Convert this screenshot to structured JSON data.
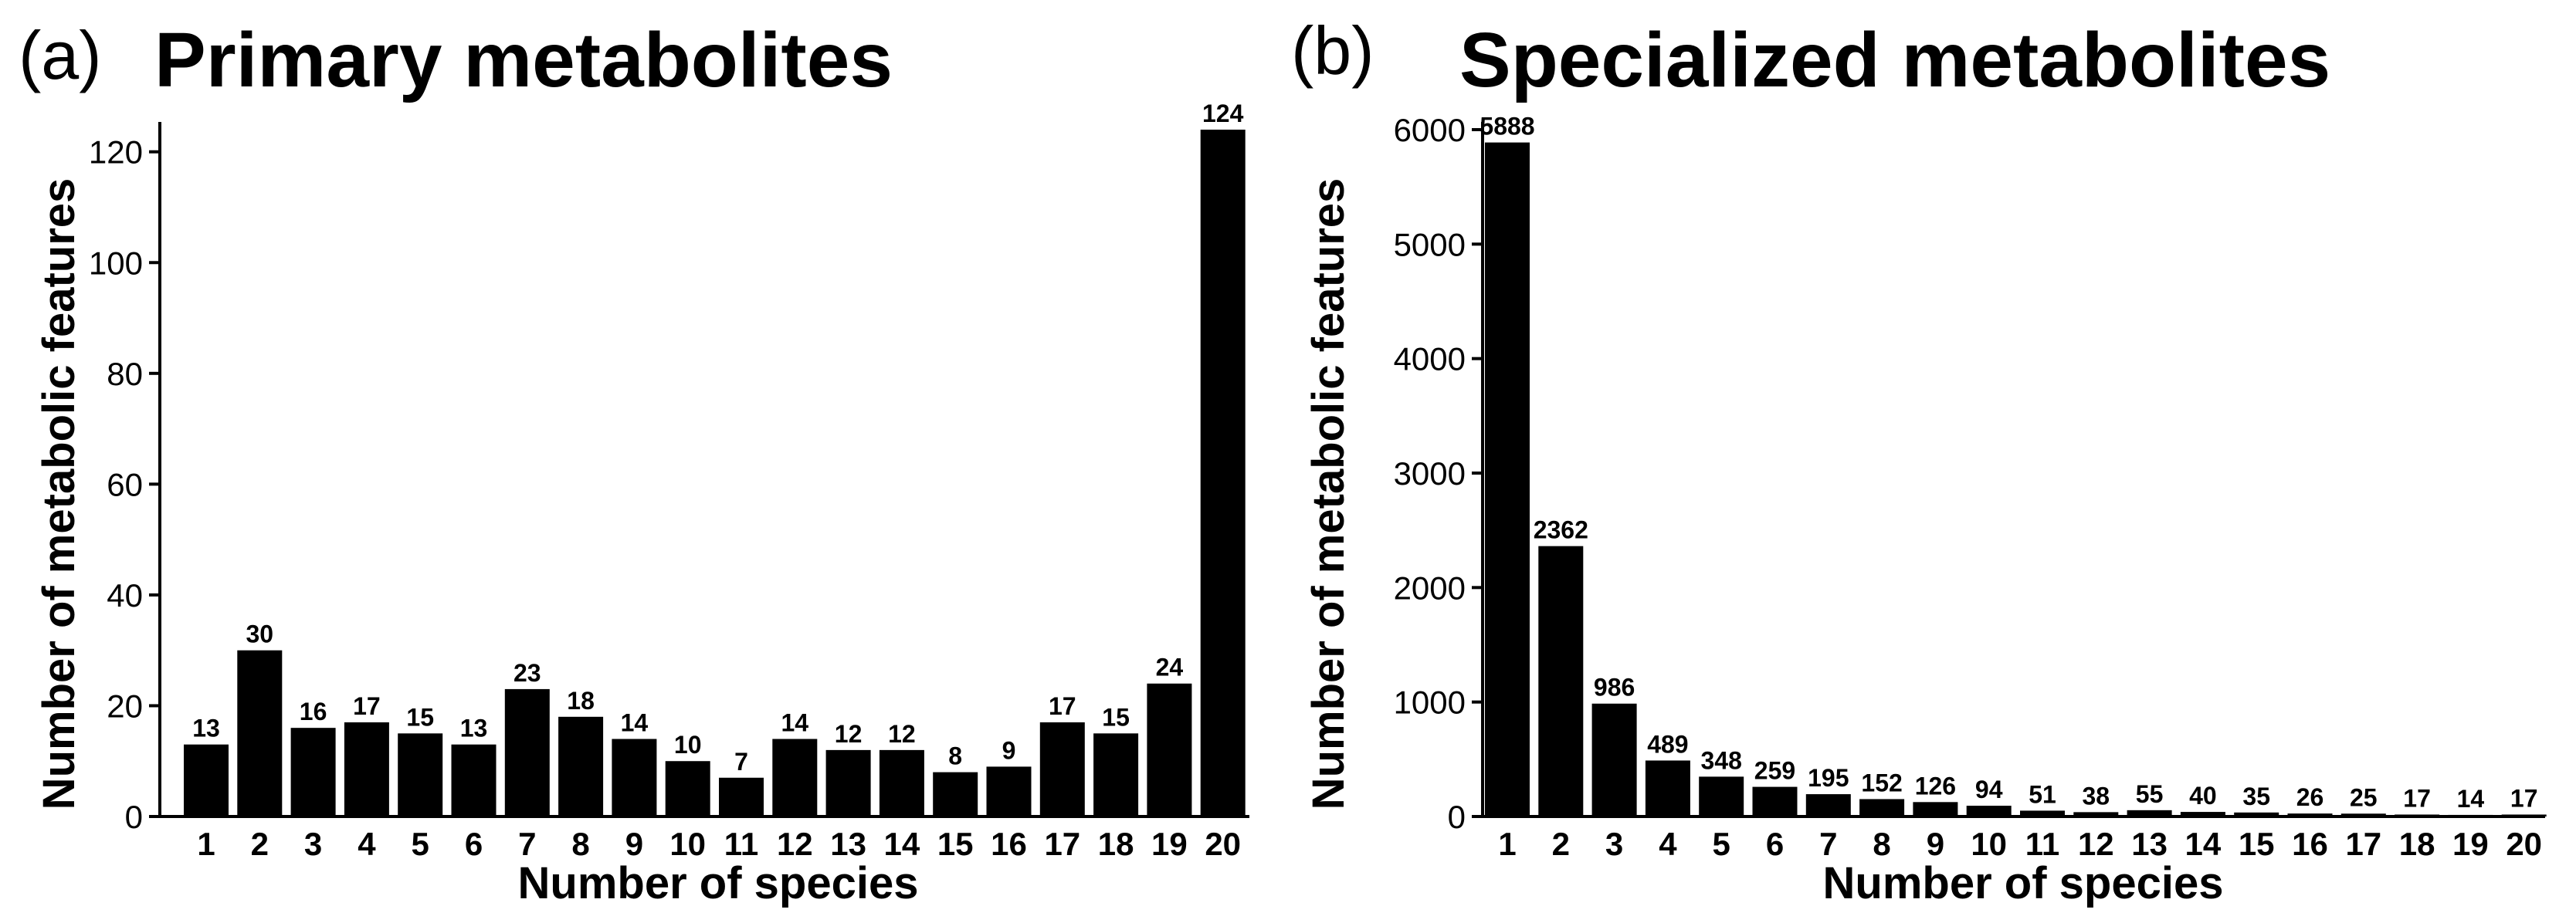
{
  "colors": {
    "bar": "#000000",
    "axis": "#000000",
    "background": "#ffffff"
  },
  "chart_data": [
    {
      "type": "bar",
      "panel_label": "(a)",
      "title": "Primary metabolites",
      "xlabel": "Number of species",
      "ylabel": "Number of metabolic features",
      "ylim": [
        0,
        124
      ],
      "yticks": [
        0,
        20,
        40,
        60,
        80,
        100,
        120
      ],
      "categories": [
        "1",
        "2",
        "3",
        "4",
        "5",
        "6",
        "7",
        "8",
        "9",
        "10",
        "11",
        "12",
        "13",
        "14",
        "15",
        "16",
        "17",
        "18",
        "19",
        "20"
      ],
      "values": [
        13,
        30,
        16,
        17,
        15,
        13,
        23,
        18,
        14,
        10,
        7,
        14,
        12,
        12,
        8,
        9,
        17,
        15,
        24,
        124
      ],
      "grid": false,
      "legend": "none"
    },
    {
      "type": "bar",
      "panel_label": "(b)",
      "title": "Specialized metabolites",
      "xlabel": "Number of species",
      "ylabel": "Number of metabolic features",
      "ylim": [
        0,
        6000
      ],
      "yticks": [
        0,
        1000,
        2000,
        3000,
        4000,
        5000,
        6000
      ],
      "categories": [
        "1",
        "2",
        "3",
        "4",
        "5",
        "6",
        "7",
        "8",
        "9",
        "10",
        "11",
        "12",
        "13",
        "14",
        "15",
        "16",
        "17",
        "18",
        "19",
        "20"
      ],
      "values": [
        5888,
        2362,
        986,
        489,
        348,
        259,
        195,
        152,
        126,
        94,
        51,
        38,
        55,
        40,
        35,
        26,
        25,
        17,
        14,
        17
      ],
      "grid": false,
      "legend": "none"
    }
  ]
}
